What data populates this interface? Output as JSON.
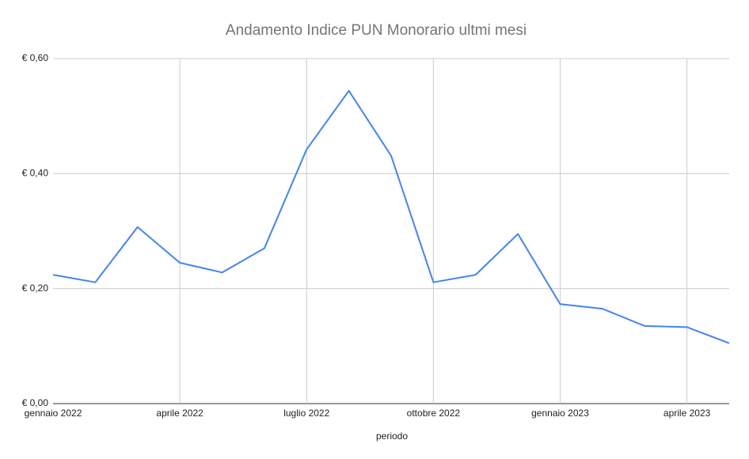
{
  "chart_data": {
    "type": "line",
    "title": "Andamento Indice PUN Monorario ultmi mesi",
    "x_label": "periodo",
    "categories": [
      "gennaio 2022",
      null,
      null,
      "aprile 2022",
      null,
      null,
      "luglio 2022",
      null,
      null,
      "ottobre 2022",
      null,
      null,
      "gennaio 2023",
      null,
      null,
      "aprile 2023",
      null
    ],
    "values": [
      0.224,
      0.211,
      0.307,
      0.245,
      0.228,
      0.27,
      0.442,
      0.544,
      0.431,
      0.211,
      0.224,
      0.295,
      0.173,
      0.165,
      0.135,
      0.133,
      0.105
    ],
    "color": "#4285f4",
    "ylim": [
      0,
      0.6
    ],
    "yticks": [
      {
        "value": 0,
        "label": "€ 0,00"
      },
      {
        "value": 0.2,
        "label": "€ 0,20"
      },
      {
        "value": 0.4,
        "label": "€ 0,40"
      },
      {
        "value": 0.6,
        "label": "€ 0,60"
      }
    ],
    "grid": true
  }
}
